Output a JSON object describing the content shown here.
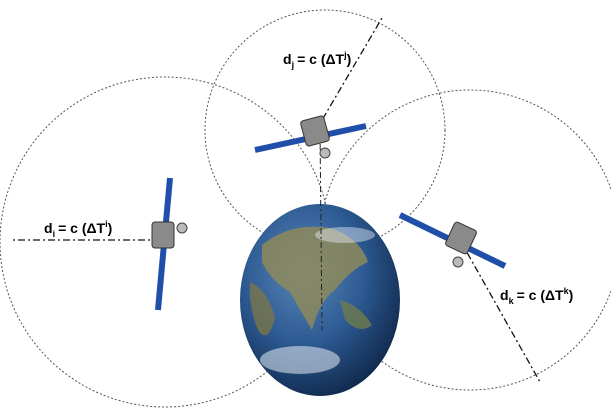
{
  "labels": [
    {
      "d": "d",
      "sub": "i",
      "eq": "= c (ΔT",
      "sup": "i",
      "close": ")"
    },
    {
      "d": "d",
      "sub": "j",
      "eq": "= c (ΔT",
      "sup": "j",
      "close": ")"
    },
    {
      "d": "d",
      "sub": "k",
      "eq": "= c (ΔT",
      "sup": "k",
      "close": ")"
    }
  ]
}
